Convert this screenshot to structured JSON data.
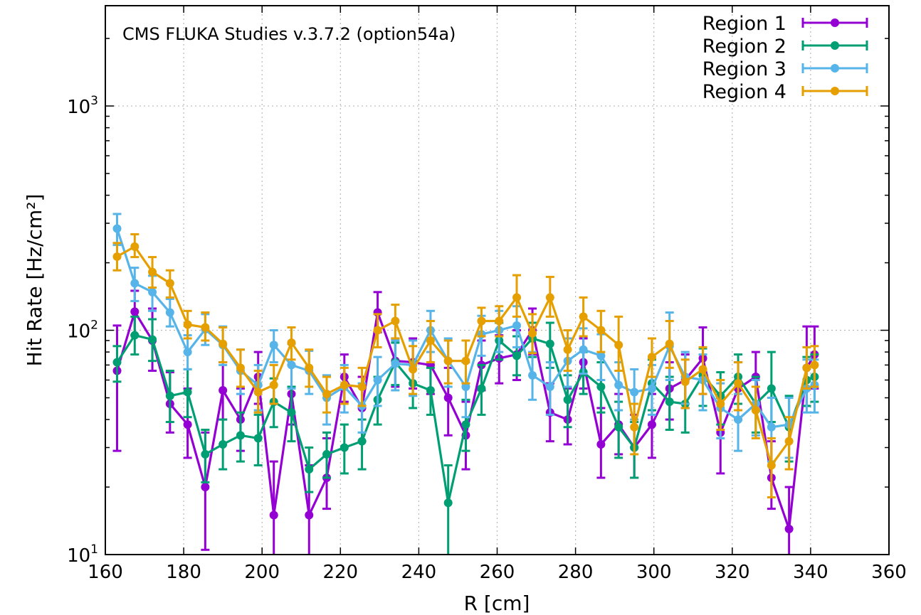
{
  "chart_data": {
    "type": "line",
    "title": "CMS FLUKA Studies v.3.7.2 (option54a)",
    "xlabel": "R [cm]",
    "ylabel": "Hit Rate [Hz/cm²]",
    "xlim": [
      160,
      360
    ],
    "ylim": [
      10,
      2800
    ],
    "y_scale": "log",
    "grid": true,
    "legend_position": "top-right",
    "x_ticks": [
      "160",
      "180",
      "200",
      "220",
      "240",
      "260",
      "280",
      "300",
      "320",
      "340",
      "360"
    ],
    "y_ticks": [
      {
        "base": "10",
        "exp": "1"
      },
      {
        "base": "10",
        "exp": "2"
      },
      {
        "base": "10",
        "exp": "3"
      }
    ],
    "x": [
      163,
      167.5,
      172,
      176.5,
      181,
      185.5,
      190,
      194.5,
      199,
      203,
      207.5,
      212,
      216.5,
      221,
      225.5,
      229.5,
      234,
      238.5,
      243,
      247.5,
      252,
      256,
      260.5,
      265,
      269,
      273.5,
      278,
      282,
      286.5,
      291,
      295,
      299.5,
      304,
      308,
      312.5,
      317,
      321.5,
      326,
      330,
      334.5,
      339,
      341
    ],
    "series": [
      {
        "name": "Region 1",
        "color": "#9400d3",
        "values": [
          66,
          121,
          90,
          47,
          38,
          20,
          54,
          40,
          62,
          15,
          52,
          15,
          22,
          62,
          45,
          120,
          73,
          72,
          70,
          50,
          34,
          70,
          75,
          78,
          100,
          43,
          40,
          72,
          31,
          38,
          30,
          38,
          55,
          60,
          75,
          35,
          55,
          62,
          22,
          13,
          68,
          78
        ],
        "err_hi": [
          105,
          150,
          125,
          65,
          55,
          35,
          72,
          55,
          80,
          26,
          70,
          25,
          33,
          78,
          62,
          148,
          92,
          92,
          92,
          68,
          48,
          90,
          95,
          100,
          125,
          58,
          55,
          92,
          45,
          52,
          42,
          52,
          72,
          78,
          103,
          50,
          72,
          80,
          32,
          20,
          104,
          104
        ],
        "err_lo": [
          29,
          95,
          66,
          35,
          27,
          10.5,
          40,
          29,
          47,
          8,
          38,
          8,
          16,
          48,
          32,
          98,
          56,
          55,
          52,
          34,
          24,
          54,
          58,
          60,
          78,
          32,
          31,
          55,
          22,
          28,
          22,
          27,
          40,
          45,
          52,
          23,
          40,
          47,
          16,
          8,
          46,
          55
        ]
      },
      {
        "name": "Region 2",
        "color": "#009e73",
        "values": [
          72,
          95,
          91,
          51,
          53,
          28,
          31,
          34,
          33,
          48,
          43,
          24,
          28,
          30,
          32,
          49,
          72,
          58,
          54,
          17,
          38,
          55,
          90,
          77,
          92,
          87,
          49,
          65,
          56,
          37,
          30,
          58,
          48,
          47,
          63,
          51,
          62,
          47,
          55,
          37,
          60,
          62
        ],
        "err_hi": [
          85,
          115,
          112,
          66,
          67,
          36,
          40,
          43,
          42,
          61,
          56,
          30,
          35,
          38,
          40,
          62,
          88,
          73,
          68,
          25,
          49,
          70,
          108,
          94,
          108,
          108,
          63,
          80,
          72,
          48,
          39,
          74,
          62,
          62,
          83,
          65,
          78,
          62,
          80,
          51,
          76,
          78
        ],
        "err_lo": [
          59,
          78,
          73,
          39,
          41,
          21,
          24,
          26,
          25,
          37,
          32,
          19,
          22,
          23,
          24,
          38,
          57,
          45,
          42,
          10,
          29,
          42,
          74,
          63,
          76,
          68,
          37,
          52,
          43,
          27,
          22,
          44,
          36,
          35,
          46,
          38,
          47,
          35,
          39,
          26,
          46,
          48
        ]
      },
      {
        "name": "Region 3",
        "color": "#56b4e9",
        "values": [
          284,
          162,
          148,
          120,
          80,
          101,
          86,
          66,
          57,
          86,
          70,
          66,
          50,
          56,
          46,
          60,
          71,
          70,
          100,
          73,
          56,
          96,
          100,
          105,
          63,
          56,
          73,
          82,
          77,
          57,
          53,
          55,
          85,
          62,
          60,
          45,
          40,
          47,
          37,
          38,
          55,
          57
        ],
        "err_hi": [
          330,
          190,
          175,
          138,
          95,
          118,
          104,
          82,
          70,
          100,
          87,
          81,
          63,
          70,
          58,
          76,
          90,
          90,
          122,
          92,
          72,
          116,
          122,
          128,
          80,
          72,
          92,
          102,
          96,
          72,
          67,
          70,
          120,
          80,
          78,
          58,
          52,
          60,
          50,
          50,
          74,
          74
        ],
        "err_lo": [
          240,
          135,
          122,
          104,
          67,
          86,
          70,
          52,
          44,
          72,
          55,
          52,
          38,
          43,
          35,
          46,
          54,
          51,
          80,
          56,
          41,
          77,
          80,
          84,
          49,
          42,
          56,
          64,
          60,
          44,
          40,
          42,
          60,
          47,
          44,
          33,
          29,
          34,
          26,
          27,
          43,
          43
        ]
      },
      {
        "name": "Region 4",
        "color": "#e69f00",
        "values": [
          213,
          236,
          182,
          162,
          106,
          103,
          87,
          68,
          53,
          57,
          88,
          68,
          52,
          57,
          56,
          100,
          110,
          67,
          90,
          73,
          73,
          110,
          110,
          140,
          97,
          140,
          82,
          115,
          100,
          86,
          37,
          76,
          87,
          59,
          67,
          47,
          58,
          44,
          25,
          32,
          68,
          70
        ],
        "err_hi": [
          245,
          268,
          212,
          185,
          122,
          120,
          103,
          82,
          66,
          70,
          103,
          82,
          62,
          68,
          68,
          118,
          130,
          85,
          110,
          90,
          90,
          126,
          128,
          176,
          118,
          173,
          100,
          140,
          122,
          115,
          47,
          92,
          110,
          74,
          84,
          60,
          72,
          56,
          33,
          41,
          84,
          85
        ],
        "err_lo": [
          185,
          212,
          155,
          140,
          92,
          90,
          72,
          56,
          43,
          47,
          74,
          56,
          43,
          47,
          46,
          84,
          92,
          52,
          72,
          58,
          58,
          94,
          94,
          115,
          79,
          115,
          66,
          94,
          80,
          66,
          28,
          62,
          68,
          45,
          52,
          36,
          44,
          33,
          18,
          24,
          55,
          56
        ]
      }
    ]
  }
}
